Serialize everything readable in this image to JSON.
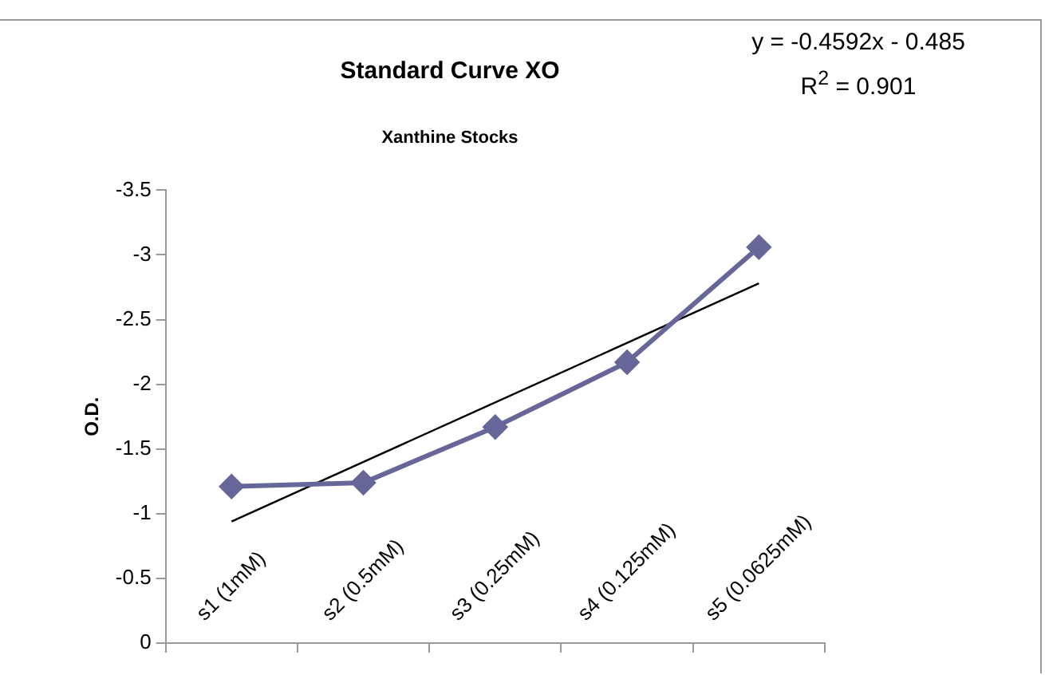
{
  "chart_data": {
    "type": "line",
    "title": "Standard Curve XO",
    "subtitle": "Xanthine Stocks",
    "ylabel": "O.D.",
    "categories": [
      "s1 (1mM)",
      "s2 (0.5mM)",
      "s3 (0.25mM)",
      "s4 (0.125mM)",
      "s5 (0.0625mM)"
    ],
    "series": [
      {
        "color": "#666699",
        "marker": "diamond",
        "values": [
          -1.21,
          -1.24,
          -1.67,
          -2.17,
          -3.06
        ]
      },
      {
        "type": "line",
        "color": "#000000",
        "marker": "none",
        "x": [
          "s1 (1mM)",
          "s5 (0.0625mM)"
        ],
        "values": [
          -0.94,
          -2.78
        ]
      }
    ],
    "ylim": [
      0,
      -3.5
    ],
    "yticks": [
      0,
      -0.5,
      -1,
      -1.5,
      -2,
      -2.5,
      -3,
      -3.5
    ],
    "grid": false,
    "legend": false,
    "annotations": [
      "y = -0.4592x - 0.485",
      "R$^{2}$ = 0.901"
    ]
  }
}
